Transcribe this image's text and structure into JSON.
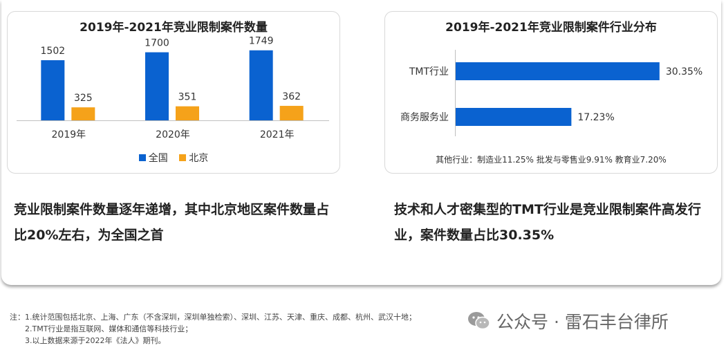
{
  "chart_data": [
    {
      "type": "bar",
      "title": "2019年-2021年竞业限制案件数量",
      "categories": [
        "2019年",
        "2020年",
        "2021年"
      ],
      "series": [
        {
          "name": "全国",
          "values": [
            1502,
            1700,
            1749
          ],
          "color": "#0a62d0"
        },
        {
          "name": "北京",
          "values": [
            325,
            351,
            362
          ],
          "color": "#f5a21a"
        }
      ],
      "ylim": [
        0,
        1900
      ],
      "legend": "bottom",
      "grid": false
    },
    {
      "type": "bar",
      "orientation": "horizontal",
      "title": "2019年-2021年竞业限制案件行业分布",
      "categories": [
        "TMT行业",
        "商务服务业"
      ],
      "values": [
        30.35,
        17.23
      ],
      "value_labels": [
        "30.35%",
        "17.23%"
      ],
      "color": "#0a62d0",
      "xlim": [
        0,
        35
      ],
      "annotation": "其他行业：制造业11.25%  批发与零售业9.91%  教育业7.20%"
    }
  ],
  "summaries": {
    "left": "竞业限制案件数量逐年递增，其中北京地区案件数量占比20%左右，为全国之首",
    "right": "技术和人才密集型的TMT行业是竞业限制案件高发行业，案件数量占比30.35%"
  },
  "notes": {
    "line1": "注：1.统计范围包括北京、上海、广东（不含深圳，深圳单独检索）、深圳、江苏、天津、重庆、成都、杭州、武汉十地；",
    "line2": "2.TMT行业是指互联网、媒体和通信等科技行业；",
    "line3": "3.以上数据来源于2022年《法人》期刊。"
  },
  "watermark": {
    "text": "公众号 · 雷石丰台律所",
    "icon": "wechat-icon"
  }
}
